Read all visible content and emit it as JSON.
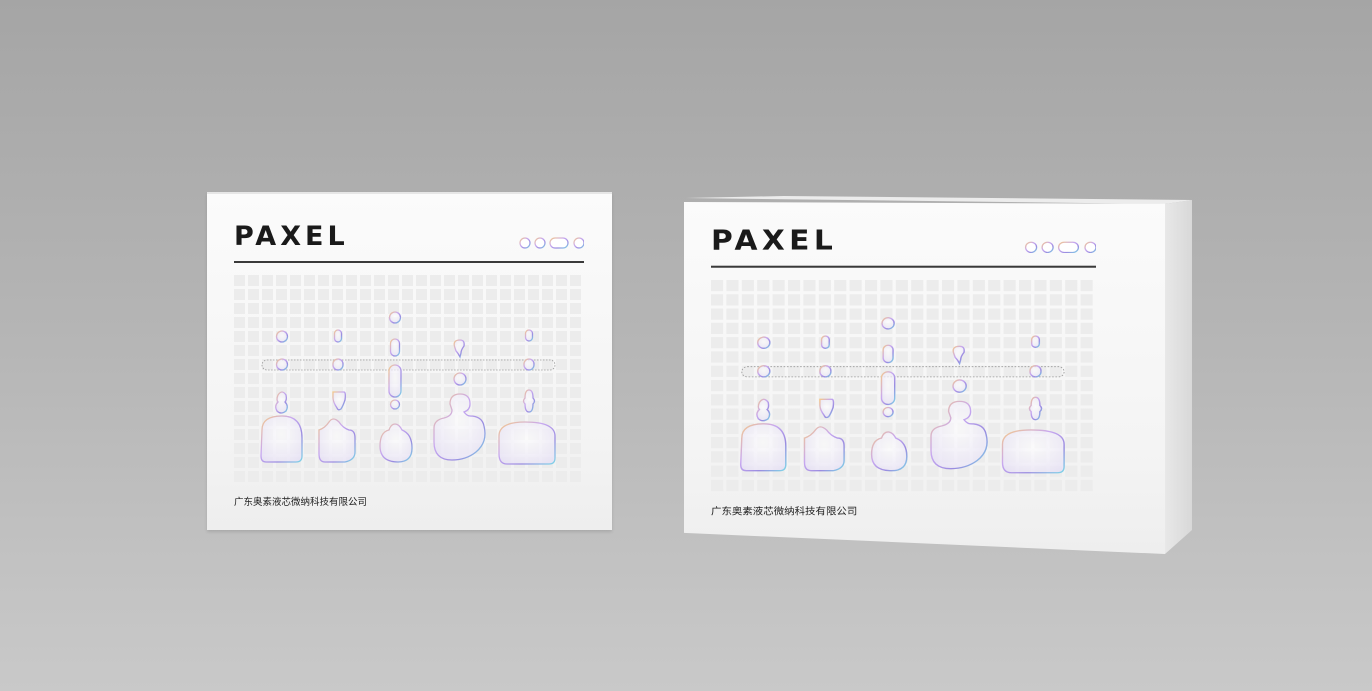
{
  "brand": {
    "logo": "PAXEL"
  },
  "company": {
    "name": "广东奥素液芯微纳科技有限公司"
  },
  "colors": {
    "background": "#b4b4b4",
    "box": "#f8f8f8",
    "grid": "#ececec",
    "logo": "#1a1a1a",
    "iridescent": [
      "#f5c98a",
      "#c8a8f0",
      "#7fd6e8",
      "#9a8ce0"
    ]
  },
  "boxes": [
    {
      "name": "left-box",
      "view": "front"
    },
    {
      "name": "right-box",
      "view": "front-and-side"
    }
  ]
}
